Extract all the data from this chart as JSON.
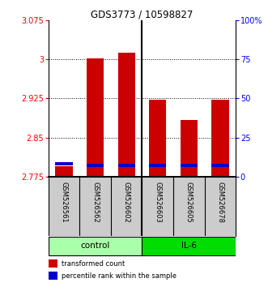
{
  "title": "GDS3773 / 10598827",
  "samples": [
    "GSM526561",
    "GSM526562",
    "GSM526602",
    "GSM526603",
    "GSM526605",
    "GSM526678"
  ],
  "groups": [
    {
      "name": "control",
      "indices": [
        0,
        1,
        2
      ],
      "color": "#aaffaa"
    },
    {
      "name": "IL-6",
      "indices": [
        3,
        4,
        5
      ],
      "color": "#00dd00"
    }
  ],
  "red_values": [
    2.796,
    3.002,
    3.013,
    2.922,
    2.884,
    2.922
  ],
  "blue_values": [
    2.8,
    2.797,
    2.797,
    2.797,
    2.797,
    2.797
  ],
  "blue_heights": [
    0.006,
    0.006,
    0.006,
    0.006,
    0.006,
    0.006
  ],
  "base_value": 2.775,
  "ylim_left": [
    2.775,
    3.075
  ],
  "ylim_right": [
    0,
    100
  ],
  "yticks_left": [
    2.775,
    2.85,
    2.925,
    3.0,
    3.075
  ],
  "yticks_right": [
    0,
    25,
    50,
    75,
    100
  ],
  "ytick_labels_left": [
    "2.775",
    "2.85",
    "2.925",
    "3",
    "3.075"
  ],
  "ytick_labels_right": [
    "0",
    "25",
    "50",
    "75",
    "100%"
  ],
  "grid_values": [
    2.85,
    2.925,
    3.0
  ],
  "bar_width": 0.55,
  "red_color": "#cc0000",
  "blue_color": "#0000cc",
  "bg_color": "#ffffff",
  "plot_bg": "#ffffff",
  "legend_red": "transformed count",
  "legend_blue": "percentile rank within the sample"
}
